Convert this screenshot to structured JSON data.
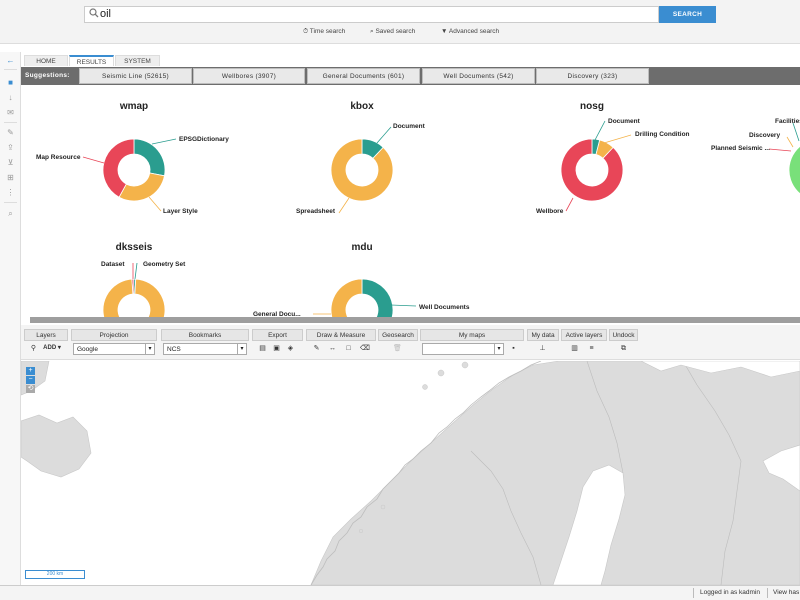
{
  "search": {
    "value": "oil",
    "button": "SEARCH",
    "links": [
      "Time search",
      "Saved search",
      "Advanced search"
    ]
  },
  "tabs": [
    "HOME",
    "RESULTS",
    "SYSTEM"
  ],
  "suggestions": {
    "label": "Suggestions:",
    "items": [
      "Seismic Line (52615)",
      "Wellbores (3907)",
      "General Documents (601)",
      "Well Documents (542)",
      "Discovery (323)"
    ]
  },
  "colors": {
    "accent": "#3a8dd1",
    "teal": "#2a9d8f",
    "yellow": "#f4b34a",
    "red": "#e84658",
    "green": "#79e07a"
  },
  "charts": [
    {
      "title": "wmap",
      "slices": [
        {
          "label": "EPSGDictionary",
          "value": 28,
          "color": "#2a9d8f"
        },
        {
          "label": "Layer Style",
          "value": 30,
          "color": "#f4b34a"
        },
        {
          "label": "Map Resource",
          "value": 42,
          "color": "#e84658"
        }
      ]
    },
    {
      "title": "kbox",
      "slices": [
        {
          "label": "Document",
          "value": 12,
          "color": "#2a9d8f"
        },
        {
          "label": "Spreadsheet",
          "value": 88,
          "color": "#f4b34a"
        }
      ]
    },
    {
      "title": "nosg",
      "slices": [
        {
          "label": "Document",
          "value": 4,
          "color": "#2a9d8f"
        },
        {
          "label": "Drilling Condition",
          "value": 8,
          "color": "#f4b34a"
        },
        {
          "label": "Wellbore",
          "value": 88,
          "color": "#e84658"
        }
      ]
    },
    {
      "title": "",
      "slices": [
        {
          "label": "Facilities",
          "value": 6,
          "color": "#2a9d8f"
        },
        {
          "label": "Discovery",
          "value": 4,
          "color": "#f4b34a"
        },
        {
          "label": "Planned Seismic ...",
          "value": 4,
          "color": "#e84658"
        },
        {
          "label": "",
          "value": 86,
          "color": "#79e07a"
        }
      ]
    },
    {
      "title": "dksseis",
      "slices": [
        {
          "label": "Dataset",
          "value": 1,
          "color": "#e84658"
        },
        {
          "label": "Geometry Set",
          "value": 1,
          "color": "#2a9d8f"
        },
        {
          "label": "",
          "value": 98,
          "color": "#f4b34a"
        }
      ]
    },
    {
      "title": "mdu",
      "slices": [
        {
          "label": "Well Documents",
          "value": 40,
          "color": "#2a9d8f"
        },
        {
          "label": "General Docu...",
          "value": 60,
          "color": "#f4b34a"
        }
      ]
    }
  ],
  "toolbar": {
    "layers": "Layers",
    "add": "ADD",
    "projection": "Projection",
    "projection_value": "Google",
    "bookmarks": "Bookmarks",
    "bookmarks_value": "NCS",
    "export": "Export",
    "draw": "Draw & Measure",
    "geosearch": "Geosearch",
    "mymaps": "My maps",
    "mydata": "My data",
    "activelayers": "Active layers",
    "undock": "Undock"
  },
  "map": {
    "scale": "200 km"
  },
  "status": {
    "logged": "Logged in as kadmin",
    "view": "View has"
  }
}
